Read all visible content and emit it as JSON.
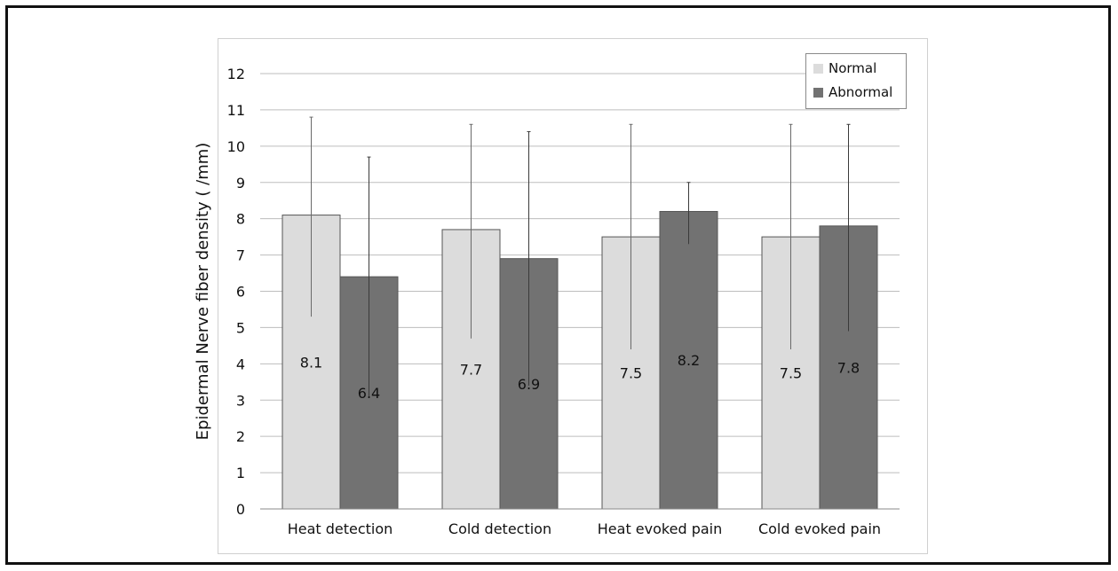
{
  "chart_data": {
    "type": "bar",
    "title": "",
    "xlabel": "",
    "ylabel": "Epidermal Nerve fiber density ( /mm)",
    "ylim": [
      0,
      12
    ],
    "yticks": [
      0,
      1,
      2,
      3,
      4,
      5,
      6,
      7,
      8,
      9,
      10,
      11,
      12
    ],
    "grid": true,
    "legend_position": "top-right",
    "categories": [
      "Heat detection",
      "Cold detection",
      "Heat evoked pain",
      "Cold evoked pain"
    ],
    "series": [
      {
        "name": "Normal",
        "color": "#dcdcdc",
        "values": [
          8.1,
          7.7,
          7.5,
          7.5
        ],
        "labels": [
          "8.1",
          "7.7",
          "7.5",
          "7.5"
        ],
        "error_low": [
          5.3,
          4.7,
          4.4,
          4.4
        ],
        "error_high": [
          10.8,
          10.6,
          10.6,
          10.6
        ]
      },
      {
        "name": "Abnormal",
        "color": "#727272",
        "values": [
          6.4,
          6.9,
          8.2,
          7.8
        ],
        "labels": [
          "6.4",
          "6.9",
          "8.2",
          "7.8"
        ],
        "error_low": [
          3.1,
          3.4,
          7.3,
          4.9
        ],
        "error_high": [
          9.7,
          10.4,
          9.0,
          10.6
        ]
      }
    ]
  }
}
